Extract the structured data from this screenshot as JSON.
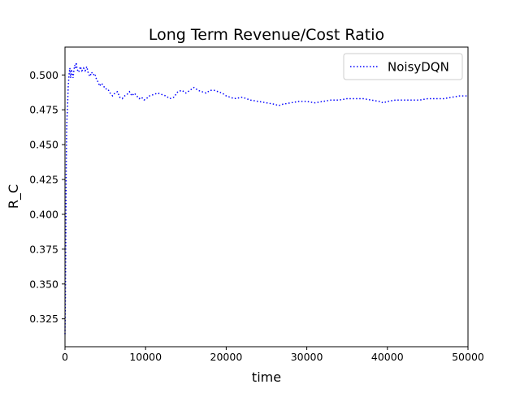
{
  "chart_data": {
    "type": "line",
    "title": "Long Term Revenue/Cost Ratio",
    "xlabel": "time",
    "ylabel": "R_C",
    "xlim": [
      0,
      50000
    ],
    "ylim": [
      0.305,
      0.52
    ],
    "x_ticks": [
      0,
      10000,
      20000,
      30000,
      40000,
      50000
    ],
    "x_tick_labels": [
      "0",
      "10000",
      "20000",
      "30000",
      "40000",
      "50000"
    ],
    "y_ticks": [
      0.325,
      0.35,
      0.375,
      0.4,
      0.425,
      0.45,
      0.475,
      0.5
    ],
    "y_tick_labels": [
      "0.325",
      "0.350",
      "0.375",
      "0.400",
      "0.425",
      "0.450",
      "0.475",
      "0.500"
    ],
    "grid": false,
    "legend_position": "top-right",
    "series": [
      {
        "name": "NoisyDQN",
        "color": "#0000ff",
        "line_style": "dotted",
        "x": [
          0,
          50,
          100,
          150,
          200,
          250,
          300,
          400,
          500,
          600,
          700,
          800,
          900,
          1000,
          1100,
          1200,
          1300,
          1400,
          1500,
          1700,
          1900,
          2100,
          2300,
          2500,
          2700,
          2900,
          3100,
          3300,
          3500,
          3700,
          3900,
          4100,
          4300,
          4500,
          4700,
          5000,
          5300,
          5600,
          5900,
          6200,
          6500,
          6800,
          7100,
          7400,
          7700,
          8000,
          8300,
          8600,
          8900,
          9200,
          9500,
          9800,
          10100,
          10500,
          11000,
          11500,
          12000,
          12500,
          13000,
          13500,
          14000,
          14500,
          15000,
          15500,
          16000,
          16500,
          17000,
          17500,
          18000,
          18500,
          19000,
          19500,
          20000,
          21000,
          22000,
          23000,
          24000,
          25000,
          26000,
          26500,
          27000,
          28000,
          29000,
          30000,
          31000,
          32000,
          33000,
          34000,
          35000,
          36000,
          37000,
          38000,
          39000,
          39500,
          40000,
          41000,
          42000,
          43000,
          44000,
          45000,
          46000,
          47000,
          48000,
          49000,
          50000
        ],
        "y": [
          0.314,
          0.34,
          0.385,
          0.43,
          0.46,
          0.47,
          0.475,
          0.492,
          0.5,
          0.505,
          0.498,
          0.504,
          0.501,
          0.498,
          0.503,
          0.507,
          0.505,
          0.509,
          0.504,
          0.502,
          0.506,
          0.503,
          0.505,
          0.503,
          0.506,
          0.501,
          0.499,
          0.502,
          0.5,
          0.501,
          0.497,
          0.495,
          0.492,
          0.494,
          0.493,
          0.49,
          0.49,
          0.487,
          0.485,
          0.487,
          0.488,
          0.484,
          0.483,
          0.485,
          0.486,
          0.488,
          0.485,
          0.487,
          0.485,
          0.483,
          0.484,
          0.482,
          0.483,
          0.485,
          0.486,
          0.487,
          0.486,
          0.485,
          0.483,
          0.484,
          0.488,
          0.489,
          0.487,
          0.489,
          0.491,
          0.489,
          0.488,
          0.487,
          0.489,
          0.489,
          0.488,
          0.487,
          0.485,
          0.483,
          0.484,
          0.482,
          0.481,
          0.48,
          0.479,
          0.478,
          0.479,
          0.48,
          0.481,
          0.481,
          0.48,
          0.481,
          0.482,
          0.482,
          0.483,
          0.483,
          0.483,
          0.482,
          0.481,
          0.48,
          0.481,
          0.482,
          0.482,
          0.482,
          0.482,
          0.483,
          0.483,
          0.483,
          0.484,
          0.485,
          0.485
        ]
      }
    ]
  }
}
